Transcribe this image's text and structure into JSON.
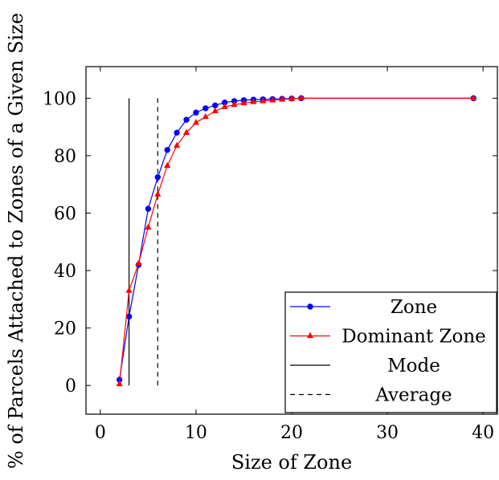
{
  "chart_data": {
    "type": "line",
    "title": "",
    "xlabel": "Size of Zone",
    "ylabel": "% of Parcels Attached to Zones of a Given Size",
    "xlim": [
      -1.5,
      41.5
    ],
    "ylim": [
      -10,
      111
    ],
    "xticks": [
      0,
      10,
      20,
      30,
      40
    ],
    "yticks": [
      0,
      20,
      40,
      60,
      80,
      100
    ],
    "grid": false,
    "legend_position": "bottom-right",
    "series": [
      {
        "name": "Zone",
        "color": "#0000ff",
        "marker": "circle",
        "x": [
          2,
          3,
          4,
          5,
          6,
          7,
          8,
          9,
          10,
          11,
          12,
          13,
          14,
          15,
          16,
          17,
          18,
          19,
          20,
          21,
          39
        ],
        "y": [
          2,
          24,
          42,
          61.5,
          72.5,
          82,
          88,
          92.5,
          95,
          96.5,
          97.5,
          98.5,
          99,
          99.3,
          99.5,
          99.6,
          99.7,
          99.8,
          99.9,
          100,
          100
        ]
      },
      {
        "name": "Dominant Zone",
        "color": "#ff0000",
        "marker": "triangle",
        "x": [
          2,
          3,
          4,
          5,
          6,
          7,
          8,
          9,
          10,
          11,
          12,
          13,
          14,
          15,
          16,
          17,
          18,
          19,
          20,
          21,
          39
        ],
        "y": [
          0.5,
          33,
          42.5,
          55,
          66.5,
          76.5,
          83.5,
          88,
          91.5,
          93.5,
          95.5,
          97,
          97.7,
          98.3,
          98.7,
          99,
          99.3,
          99.6,
          99.8,
          100,
          100
        ]
      }
    ],
    "reference_lines": [
      {
        "name": "Mode",
        "x": 3,
        "y_range": [
          0,
          100
        ],
        "style": "solid",
        "color": "#000000"
      },
      {
        "name": "Average",
        "x": 6,
        "y_range": [
          0,
          100
        ],
        "style": "dashed",
        "color": "#000000"
      }
    ]
  }
}
